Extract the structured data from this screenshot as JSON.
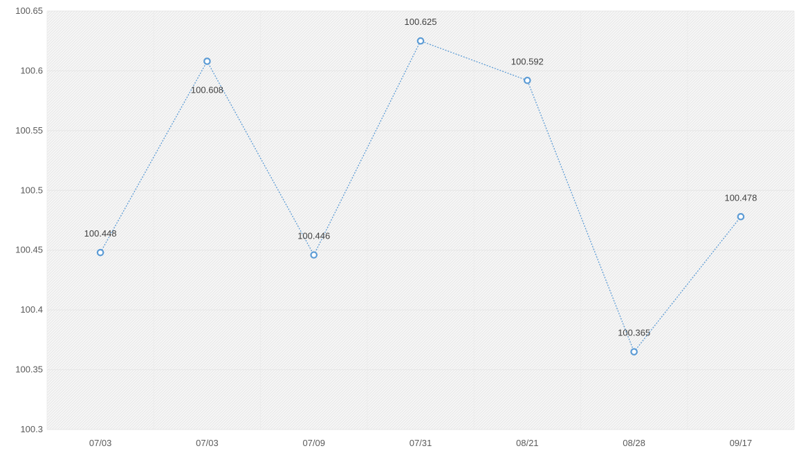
{
  "chart_data": {
    "type": "line",
    "title": "",
    "xlabel": "",
    "ylabel": "",
    "categories": [
      "07/03",
      "07/03",
      "07/09",
      "07/31",
      "08/21",
      "08/28",
      "09/17"
    ],
    "series": [
      {
        "values": [
          100.448,
          100.608,
          100.446,
          100.625,
          100.592,
          100.365,
          100.478
        ],
        "color": "#5b9bd5",
        "line_style": "dotted",
        "marker": "circle"
      }
    ],
    "data_labels": [
      "100.448",
      "100.608",
      "100.446",
      "100.625",
      "100.592",
      "100.365",
      "100.478"
    ],
    "data_label_positions": [
      "above",
      "below",
      "above",
      "above",
      "above",
      "above",
      "above"
    ],
    "ylim": [
      100.3,
      100.65
    ],
    "y_ticks": [
      100.3,
      100.35,
      100.4,
      100.45,
      100.5,
      100.55,
      100.6,
      100.65
    ],
    "y_tick_labels": [
      "100.3",
      "100.35",
      "100.4",
      "100.45",
      "100.5",
      "100.55",
      "100.6",
      "100.65"
    ],
    "grid": true,
    "legend": "none",
    "plot_background": "hatched-light-gray"
  }
}
